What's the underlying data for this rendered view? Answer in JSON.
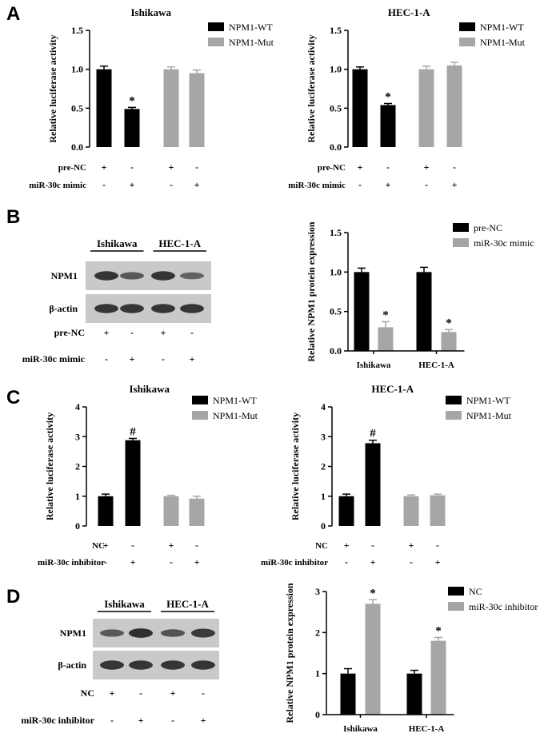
{
  "panels": {
    "A": "A",
    "B": "B",
    "C": "C",
    "D": "D"
  },
  "colors": {
    "wt": "#000000",
    "mut": "#a6a6a6",
    "blot_bg": "#c9c9c9",
    "band": "#2a2a2a"
  },
  "chart_data": [
    {
      "id": "A1",
      "type": "bar",
      "title": "Ishikawa",
      "ylabel": "Relative luciferase activity",
      "ylim": [
        0,
        1.5
      ],
      "yticks": [
        "0.0",
        "0.5",
        "1.0",
        "1.5"
      ],
      "legend": [
        "NPM1-WT",
        "NPM1-Mut"
      ],
      "bars": [
        {
          "series": 0,
          "value": 1.0,
          "err": 0.04,
          "mark": ""
        },
        {
          "series": 0,
          "value": 0.49,
          "err": 0.02,
          "mark": "*"
        },
        {
          "series": 1,
          "value": 1.0,
          "err": 0.03,
          "mark": ""
        },
        {
          "series": 1,
          "value": 0.95,
          "err": 0.04,
          "mark": ""
        }
      ],
      "rows": [
        {
          "label": "pre-NC",
          "signs": [
            "+",
            "-",
            "+",
            "-"
          ]
        },
        {
          "label": "miR-30c mimic",
          "signs": [
            "-",
            "+",
            "-",
            "+"
          ]
        }
      ]
    },
    {
      "id": "A2",
      "type": "bar",
      "title": "HEC-1-A",
      "ylabel": "Relative luciferase activity",
      "ylim": [
        0,
        1.5
      ],
      "yticks": [
        "0.0",
        "0.5",
        "1.0",
        "1.5"
      ],
      "legend": [
        "NPM1-WT",
        "NPM1-Mut"
      ],
      "bars": [
        {
          "series": 0,
          "value": 1.0,
          "err": 0.03,
          "mark": ""
        },
        {
          "series": 0,
          "value": 0.54,
          "err": 0.02,
          "mark": "*"
        },
        {
          "series": 1,
          "value": 1.0,
          "err": 0.04,
          "mark": ""
        },
        {
          "series": 1,
          "value": 1.05,
          "err": 0.04,
          "mark": ""
        }
      ],
      "rows": [
        {
          "label": "pre-NC",
          "signs": [
            "+",
            "-",
            "+",
            "-"
          ]
        },
        {
          "label": "miR-30c mimic",
          "signs": [
            "-",
            "+",
            "-",
            "+"
          ]
        }
      ]
    },
    {
      "id": "B",
      "type": "bar",
      "title": "",
      "ylabel": "Relative NPM1 protein expression",
      "ylim": [
        0,
        1.5
      ],
      "yticks": [
        "0.0",
        "0.5",
        "1.0",
        "1.5"
      ],
      "legend": [
        "pre-NC",
        "miR-30c mimic"
      ],
      "categories": [
        "Ishikawa",
        "HEC-1-A"
      ],
      "bars": [
        {
          "series": 0,
          "value": 1.0,
          "err": 0.05,
          "mark": ""
        },
        {
          "series": 1,
          "value": 0.3,
          "err": 0.07,
          "mark": "*"
        },
        {
          "series": 0,
          "value": 1.0,
          "err": 0.06,
          "mark": ""
        },
        {
          "series": 1,
          "value": 0.24,
          "err": 0.03,
          "mark": "*"
        }
      ]
    },
    {
      "id": "C1",
      "type": "bar",
      "title": "Ishikawa",
      "ylabel": "Relative luciferase activity",
      "ylim": [
        0,
        4
      ],
      "yticks": [
        "0",
        "1",
        "2",
        "3",
        "4"
      ],
      "legend": [
        "NPM1-WT",
        "NPM1-Mut"
      ],
      "bars": [
        {
          "series": 0,
          "value": 1.0,
          "err": 0.07,
          "mark": ""
        },
        {
          "series": 0,
          "value": 2.88,
          "err": 0.06,
          "mark": "#"
        },
        {
          "series": 1,
          "value": 1.0,
          "err": 0.03,
          "mark": ""
        },
        {
          "series": 1,
          "value": 0.92,
          "err": 0.08,
          "mark": ""
        }
      ],
      "rows": [
        {
          "label": "NC",
          "signs": [
            "+",
            "-",
            "+",
            "-"
          ]
        },
        {
          "label": "miR-30c  inhibitor",
          "signs": [
            "-",
            "+",
            "-",
            "+"
          ]
        }
      ]
    },
    {
      "id": "C2",
      "type": "bar",
      "title": "HEC-1-A",
      "ylabel": "Relative luciferase activity",
      "ylim": [
        0,
        4
      ],
      "yticks": [
        "0",
        "1",
        "2",
        "3",
        "4"
      ],
      "legend": [
        "NPM1-WT",
        "NPM1-Mut"
      ],
      "bars": [
        {
          "series": 0,
          "value": 1.0,
          "err": 0.07,
          "mark": ""
        },
        {
          "series": 0,
          "value": 2.78,
          "err": 0.1,
          "mark": "#"
        },
        {
          "series": 1,
          "value": 1.0,
          "err": 0.04,
          "mark": ""
        },
        {
          "series": 1,
          "value": 1.03,
          "err": 0.04,
          "mark": ""
        }
      ],
      "rows": [
        {
          "label": "NC",
          "signs": [
            "+",
            "-",
            "+",
            "-"
          ]
        },
        {
          "label": "miR-30c  inhibitor",
          "signs": [
            "-",
            "+",
            "-",
            "+"
          ]
        }
      ]
    },
    {
      "id": "D",
      "type": "bar",
      "title": "",
      "ylabel": "Relative NPM1 protein expression",
      "ylim": [
        0,
        3
      ],
      "yticks": [
        "0",
        "1",
        "2",
        "3"
      ],
      "legend": [
        "NC",
        "miR-30c inhibitor"
      ],
      "categories": [
        "Ishikawa",
        "HEC-1-A"
      ],
      "bars": [
        {
          "series": 0,
          "value": 1.0,
          "err": 0.12,
          "mark": ""
        },
        {
          "series": 1,
          "value": 2.7,
          "err": 0.1,
          "mark": "*"
        },
        {
          "series": 0,
          "value": 1.0,
          "err": 0.08,
          "mark": ""
        },
        {
          "series": 1,
          "value": 1.8,
          "err": 0.08,
          "mark": "*"
        }
      ]
    }
  ],
  "blots": [
    {
      "id": "B",
      "groups": [
        "Ishikawa",
        "HEC-1-A"
      ],
      "proteins": [
        "NPM1",
        "β-actin"
      ],
      "band_strength": [
        [
          0.9,
          0.55,
          0.9,
          0.45
        ],
        [
          0.9,
          0.9,
          0.9,
          0.9
        ]
      ],
      "rows": [
        {
          "label": "pre-NC",
          "signs": [
            "+",
            "-",
            "+",
            "-"
          ]
        },
        {
          "label": "miR-30c mimic",
          "signs": [
            "-",
            "+",
            "-",
            "+"
          ]
        }
      ]
    },
    {
      "id": "D",
      "groups": [
        "Ishikawa",
        "HEC-1-A"
      ],
      "proteins": [
        "NPM1",
        "β-actin"
      ],
      "band_strength": [
        [
          0.55,
          0.95,
          0.6,
          0.85
        ],
        [
          0.9,
          0.9,
          0.9,
          0.9
        ]
      ],
      "rows": [
        {
          "label": "NC",
          "signs": [
            "+",
            "-",
            "+",
            "-"
          ]
        },
        {
          "label": "miR-30c  inhibitor",
          "signs": [
            "-",
            "+",
            "-",
            "+"
          ]
        }
      ]
    }
  ]
}
